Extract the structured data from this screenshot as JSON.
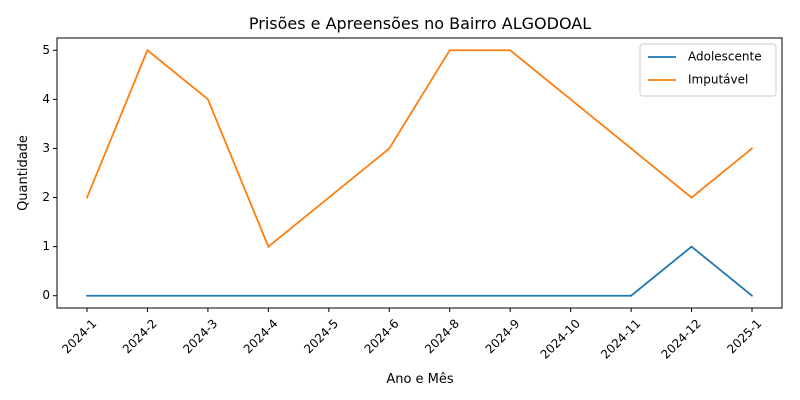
{
  "chart_data": {
    "type": "line",
    "title": "Prisões e Apreensões no Bairro ALGODOAL",
    "xlabel": "Ano e Mês",
    "ylabel": "Quantidade",
    "categories": [
      "2024-1",
      "2024-2",
      "2024-3",
      "2024-4",
      "2024-5",
      "2024-6",
      "2024-8",
      "2024-9",
      "2024-10",
      "2024-11",
      "2024-12",
      "2025-1"
    ],
    "series": [
      {
        "name": "Adolescente",
        "color": "#1f77b4",
        "values": [
          0,
          0,
          0,
          0,
          0,
          0,
          0,
          0,
          0,
          0,
          1,
          0
        ]
      },
      {
        "name": "Imputável",
        "color": "#ff7f0e",
        "values": [
          2,
          5,
          4,
          1,
          2,
          3,
          5,
          5,
          4,
          3,
          2,
          3
        ]
      }
    ],
    "ylim": [
      -0.25,
      5.25
    ],
    "yticks": [
      0,
      1,
      2,
      3,
      4,
      5
    ],
    "grid": false,
    "legend": "top-right"
  }
}
